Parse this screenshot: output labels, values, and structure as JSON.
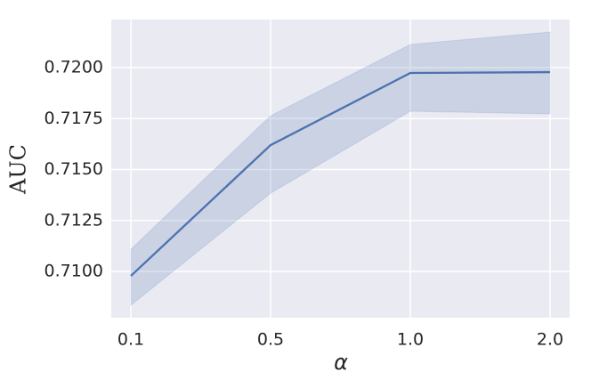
{
  "chart_data": {
    "type": "line",
    "xlabel": "α",
    "ylabel": "AUC",
    "categories": [
      "0.1",
      "0.5",
      "1.0",
      "2.0"
    ],
    "values": [
      0.70978,
      0.7162,
      0.71974,
      0.71978
    ],
    "upper": [
      0.71109,
      0.71764,
      0.72114,
      0.72175
    ],
    "lower": [
      0.70834,
      0.71384,
      0.71786,
      0.71773
    ],
    "color": "#4c72b0",
    "ylim": [
      0.70773,
      0.72236
    ],
    "yticks": [
      {
        "value": 0.71,
        "label": "0.7100"
      },
      {
        "value": 0.7125,
        "label": "0.7125"
      },
      {
        "value": 0.715,
        "label": "0.7150"
      },
      {
        "value": 0.7175,
        "label": "0.7175"
      },
      {
        "value": 0.72,
        "label": "0.7200"
      }
    ],
    "grid": true
  }
}
